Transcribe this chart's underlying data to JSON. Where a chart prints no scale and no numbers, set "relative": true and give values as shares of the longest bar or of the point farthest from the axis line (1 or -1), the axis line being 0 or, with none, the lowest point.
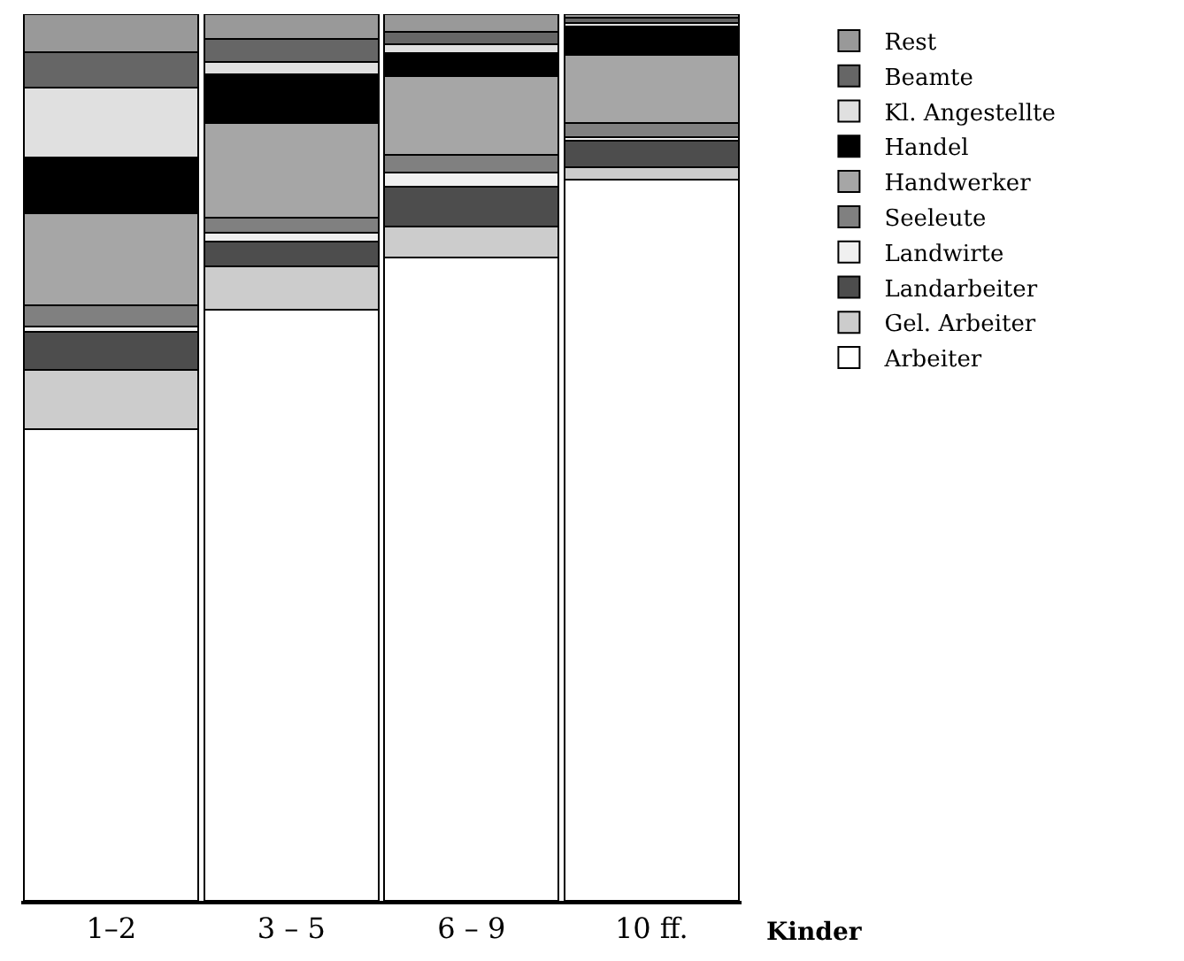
{
  "chart_data": {
    "type": "bar",
    "stacked": true,
    "relative": true,
    "xlabel": "Kinder",
    "legend": "right",
    "categories": [
      "1–2",
      "3 – 5",
      "6 – 9",
      "10 ff."
    ],
    "series": [
      {
        "name": "Arbeiter",
        "color": "#ffffff",
        "values": [
          0.532,
          0.667,
          0.726,
          0.813
        ]
      },
      {
        "name": "Gel. Arbeiter",
        "color": "#cccccc",
        "values": [
          0.067,
          0.049,
          0.034,
          0.014
        ]
      },
      {
        "name": "Landarbeiter",
        "color": "#4d4d4d",
        "values": [
          0.043,
          0.028,
          0.045,
          0.03
        ]
      },
      {
        "name": "Landwirte",
        "color": "#f0f0f0",
        "values": [
          0.006,
          0.01,
          0.016,
          0.004
        ]
      },
      {
        "name": "Seeleute",
        "color": "#808080",
        "values": [
          0.024,
          0.016,
          0.02,
          0.016
        ]
      },
      {
        "name": "Handwerker",
        "color": "#a6a6a6",
        "values": [
          0.103,
          0.107,
          0.089,
          0.077
        ]
      },
      {
        "name": "Handel",
        "color": "#000000",
        "values": [
          0.063,
          0.055,
          0.026,
          0.032
        ]
      },
      {
        "name": "Kl. Angestellte",
        "color": "#e0e0e0",
        "values": [
          0.079,
          0.014,
          0.01,
          0.004
        ]
      },
      {
        "name": "Beamte",
        "color": "#666666",
        "values": [
          0.04,
          0.026,
          0.014,
          0.006
        ]
      },
      {
        "name": "Rest",
        "color": "#999999",
        "values": [
          0.043,
          0.028,
          0.02,
          0.004
        ]
      }
    ]
  }
}
